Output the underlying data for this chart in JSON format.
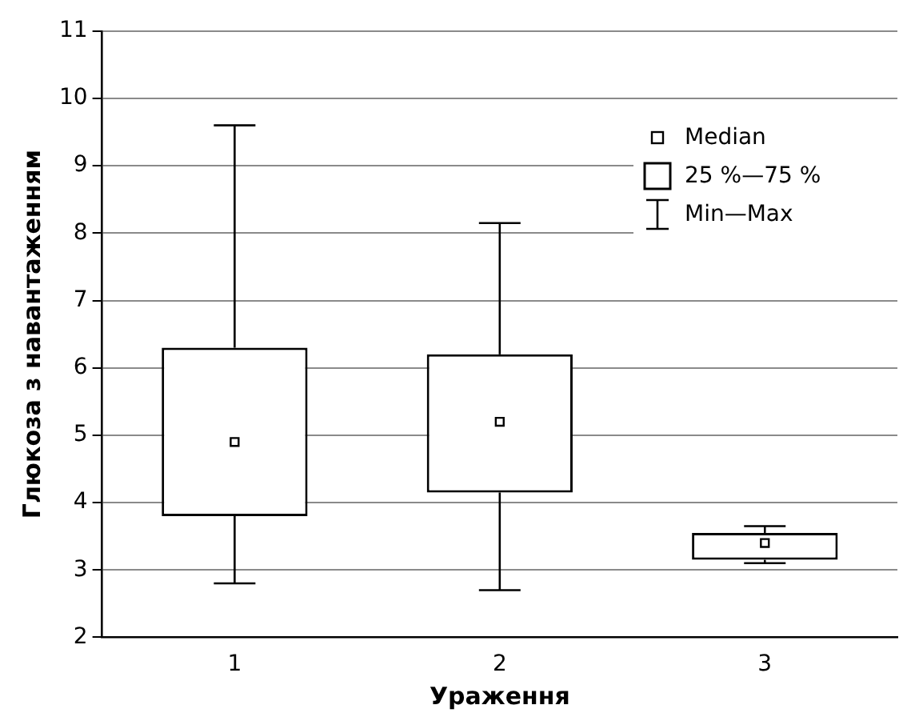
{
  "chart_data": {
    "type": "box",
    "xlabel": "Ураження",
    "ylabel": "Глюкоза з навантаженням",
    "categories": [
      "1",
      "2",
      "3"
    ],
    "boxes": [
      {
        "low": 2.8,
        "q1": 3.8,
        "median": 4.9,
        "q3": 6.3,
        "high": 9.6
      },
      {
        "low": 2.7,
        "q1": 4.15,
        "median": 5.2,
        "q3": 6.2,
        "high": 8.15
      },
      {
        "low": 3.1,
        "q1": 3.15,
        "median": 3.4,
        "q3": 3.55,
        "high": 3.65
      }
    ],
    "color": "#000000",
    "ylim": [
      2,
      11
    ],
    "yticks": [
      2,
      3,
      4,
      5,
      6,
      7,
      8,
      9,
      10,
      11
    ],
    "grid": "y",
    "marker": "square",
    "annotations": [
      "Median",
      "25 %—75 %",
      "Min—Max"
    ]
  }
}
